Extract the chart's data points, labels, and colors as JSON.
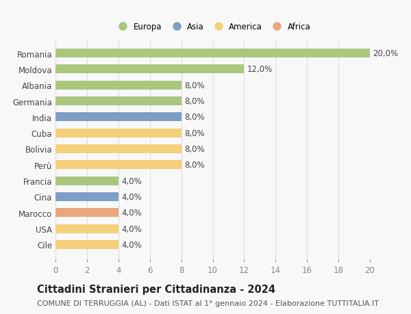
{
  "categories": [
    "Romania",
    "Moldova",
    "Albania",
    "Germania",
    "India",
    "Cuba",
    "Bolivia",
    "Perù",
    "Francia",
    "Cina",
    "Marocco",
    "USA",
    "Cile"
  ],
  "values": [
    20.0,
    12.0,
    8.0,
    8.0,
    8.0,
    8.0,
    8.0,
    8.0,
    4.0,
    4.0,
    4.0,
    4.0,
    4.0
  ],
  "continents": [
    "Europa",
    "Europa",
    "Europa",
    "Europa",
    "Asia",
    "America",
    "America",
    "America",
    "Europa",
    "Asia",
    "Africa",
    "America",
    "America"
  ],
  "colors": {
    "Europa": "#a8c87e",
    "Asia": "#7d9fc5",
    "America": "#f5d07a",
    "Africa": "#e8a87c"
  },
  "legend_order": [
    "Europa",
    "Asia",
    "America",
    "Africa"
  ],
  "xlim": [
    0,
    20
  ],
  "xticks": [
    0,
    2,
    4,
    6,
    8,
    10,
    12,
    14,
    16,
    18,
    20
  ],
  "title": "Cittadini Stranieri per Cittadinanza - 2024",
  "subtitle": "COMUNE DI TERRUGGIA (AL) - Dati ISTAT al 1° gennaio 2024 - Elaborazione TUTTITALIA.IT",
  "background_color": "#f8f8f8",
  "grid_color": "#dddddd",
  "label_fontsize": 8.5,
  "title_fontsize": 10.5,
  "subtitle_fontsize": 8,
  "bar_height": 0.55
}
